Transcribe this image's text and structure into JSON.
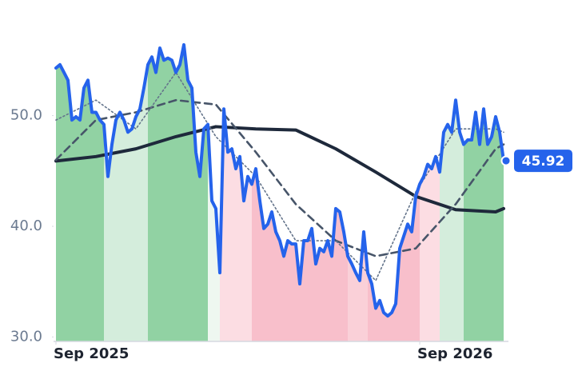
{
  "chart_data": {
    "type": "line",
    "xlim": [
      -0.6,
      112.6
    ],
    "ylim": [
      29.6,
      59
    ],
    "yticks": [
      {
        "value": 30,
        "label": "30.0"
      },
      {
        "value": 40,
        "label": "40.0"
      },
      {
        "value": 50,
        "label": "50.0"
      }
    ],
    "xticks": [
      {
        "value": 0,
        "label": "Sep 2025"
      },
      {
        "value": 91,
        "label": "Sep 2026"
      }
    ],
    "bands": [
      {
        "from": 0,
        "to": 12,
        "color": "#91d2a3"
      },
      {
        "from": 12,
        "to": 23,
        "color": "#d4eddc"
      },
      {
        "from": 23,
        "to": 38,
        "color": "#91d2a3"
      },
      {
        "from": 38,
        "to": 41,
        "color": "#eef7f0"
      },
      {
        "from": 41,
        "to": 49,
        "color": "#fcdde3"
      },
      {
        "from": 49,
        "to": 73,
        "color": "#f8bfcb"
      },
      {
        "from": 73,
        "to": 78,
        "color": "#fad0d8"
      },
      {
        "from": 78,
        "to": 91,
        "color": "#f8bfcb"
      },
      {
        "from": 91,
        "to": 96,
        "color": "#fcdde3"
      },
      {
        "from": 96,
        "to": 102,
        "color": "#d4eddc"
      },
      {
        "from": 102,
        "to": 112,
        "color": "#91d2a3"
      }
    ],
    "series": [
      {
        "color": "#2563eb",
        "values": [
          54.3,
          54.6,
          53.9,
          53.2,
          49.6,
          49.9,
          49.6,
          52.5,
          53.2,
          50.3,
          50.3,
          49.6,
          49.2,
          44.5,
          47.4,
          49.6,
          50.3,
          49.6,
          48.5,
          48.8,
          49.9,
          50.6,
          52.5,
          54.6,
          55.3,
          53.9,
          56.1,
          55.0,
          55.2,
          55.0,
          53.9,
          54.6,
          56.4,
          53.2,
          52.5,
          46.7,
          44.5,
          48.8,
          49.2,
          42.3,
          41.6,
          35.8,
          50.6,
          46.7,
          47.0,
          45.2,
          46.3,
          42.3,
          44.5,
          43.8,
          45.2,
          42.3,
          39.8,
          40.2,
          41.3,
          39.5,
          38.7,
          37.3,
          38.7,
          38.4,
          38.4,
          34.8,
          38.7,
          38.7,
          39.8,
          36.6,
          38.0,
          37.7,
          38.7,
          37.3,
          41.6,
          41.3,
          39.5,
          37.3,
          36.6,
          35.8,
          35.1,
          39.5,
          35.8,
          34.8,
          32.6,
          33.3,
          32.2,
          31.9,
          32.2,
          33.0,
          38.0,
          39.1,
          40.2,
          39.5,
          42.7,
          43.8,
          44.5,
          45.6,
          45.2,
          46.3,
          44.9,
          48.5,
          49.2,
          48.5,
          51.4,
          48.5,
          47.4,
          47.8,
          47.8,
          50.3,
          47.4,
          50.6,
          47.4,
          48.1,
          49.9,
          48.5,
          45.92
        ]
      },
      {
        "color": "#64748b",
        "dash": "2,3",
        "width": 1.6,
        "x": [
          0,
          10,
          20,
          30,
          40,
          50,
          60,
          70,
          80,
          90,
          100,
          110,
          112
        ],
        "values": [
          49.6,
          51.4,
          48.8,
          53.9,
          48.1,
          44.5,
          38.7,
          38.7,
          35.1,
          43.1,
          48.8,
          48.8,
          48.5
        ]
      },
      {
        "color": "#475569",
        "dash": "9,6",
        "width": 2.6,
        "x": [
          0,
          10,
          20,
          30,
          40,
          50,
          60,
          70,
          80,
          90,
          100,
          110,
          112
        ],
        "values": [
          46.0,
          49.6,
          50.3,
          51.4,
          51.0,
          46.7,
          42.0,
          38.7,
          37.3,
          38.0,
          42.0,
          47.0,
          47.4
        ]
      },
      {
        "color": "#1e293b",
        "width": 4,
        "x": [
          0,
          10,
          20,
          30,
          40,
          50,
          60,
          70,
          80,
          90,
          100,
          110,
          112
        ],
        "values": [
          45.9,
          46.3,
          47.0,
          48.1,
          49.0,
          48.8,
          48.7,
          47.0,
          44.9,
          42.7,
          41.5,
          41.3,
          41.6
        ]
      }
    ]
  }
}
